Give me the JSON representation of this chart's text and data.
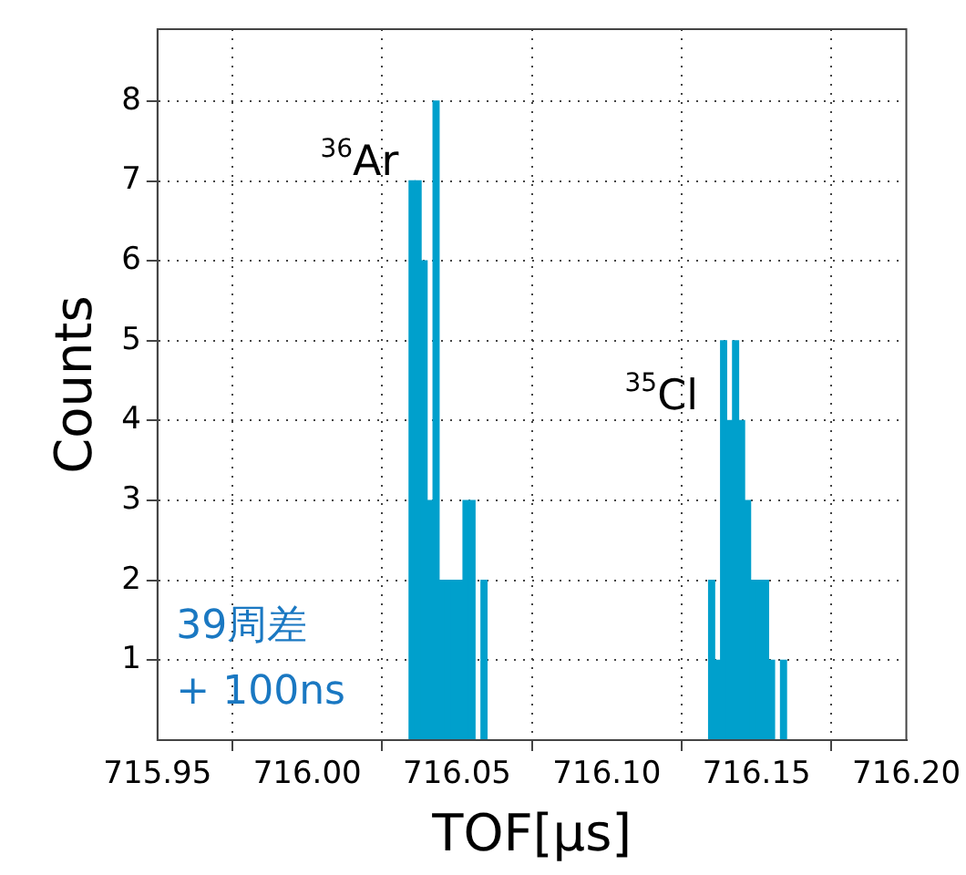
{
  "chart_data": {
    "type": "histogram",
    "xlabel": "TOF[μs]",
    "ylabel": "Counts",
    "color": "#00a0cc",
    "bins": [
      716.034,
      716.036,
      716.038,
      716.04,
      716.042,
      716.044,
      716.046,
      716.048,
      716.05,
      716.052,
      716.054,
      716.056,
      716.058,
      716.06,
      716.062,
      716.064,
      716.066,
      716.068,
      716.07,
      716.072,
      716.074,
      716.076,
      716.078,
      716.08,
      716.082,
      716.084,
      716.086,
      716.088,
      716.09,
      716.092,
      716.094,
      716.096,
      716.098,
      716.1,
      716.102,
      716.104,
      716.106,
      716.108,
      716.11,
      716.112,
      716.114,
      716.116,
      716.118,
      716.12,
      716.122,
      716.124,
      716.126,
      716.128,
      716.13,
      716.132,
      716.134,
      716.136,
      716.138,
      716.14,
      716.142,
      716.144,
      716.146,
      716.148,
      716.15,
      716.152,
      716.154,
      716.156,
      716.158,
      716.16
    ],
    "values": [
      7,
      7,
      6,
      3,
      8,
      2,
      2,
      2,
      2,
      3,
      3,
      0,
      2,
      0,
      0,
      0,
      0,
      0,
      0,
      0,
      0,
      0,
      0,
      0,
      0,
      0,
      0,
      0,
      0,
      0,
      0,
      0,
      0,
      0,
      0,
      0,
      0,
      0,
      0,
      0,
      0,
      0,
      0,
      0,
      0,
      0,
      0,
      0,
      0,
      0,
      2,
      1,
      5,
      4,
      5,
      4,
      3,
      2,
      2,
      2,
      1,
      0,
      1
    ],
    "xlim": [
      715.95,
      716.2
    ],
    "xticks": [
      {
        "value": 715.95,
        "label": "715.95"
      },
      {
        "value": 716.0,
        "label": "716.00"
      },
      {
        "value": 716.05,
        "label": "716.05"
      },
      {
        "value": 716.1,
        "label": "716.10"
      },
      {
        "value": 716.15,
        "label": "716.15"
      },
      {
        "value": 716.2,
        "label": "716.20"
      }
    ],
    "ylim": [
      0,
      8.9
    ],
    "yticks": [
      1,
      2,
      3,
      4,
      5,
      6,
      7,
      8
    ],
    "grid": true,
    "legend": false,
    "annotations": [
      "$^{36}$Ar",
      "$^{35}$Cl",
      "39周差",
      "+ 100ns"
    ]
  }
}
